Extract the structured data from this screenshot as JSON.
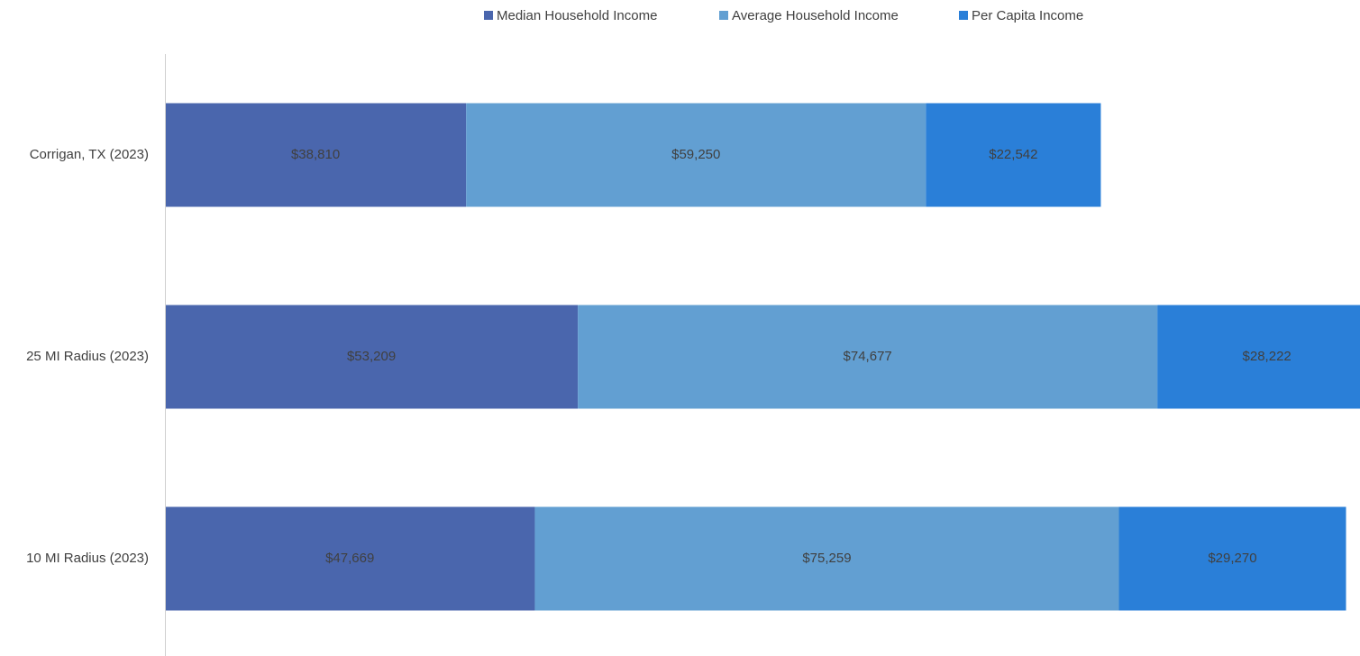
{
  "chart_data": {
    "type": "stacked_bar_horizontal",
    "categories": [
      "Corrigan, TX (2023)",
      "25 MI Radius (2023)",
      "10 MI Radius (2023)"
    ],
    "series": [
      {
        "name": "Median Household Income",
        "color": "#4a66ad",
        "values": [
          38810,
          53209,
          47669
        ],
        "value_labels": [
          "$38,810",
          "$53,209",
          "$47,669"
        ]
      },
      {
        "name": "Average Household Income",
        "color": "#629fd2",
        "values": [
          59250,
          74677,
          75259
        ],
        "value_labels": [
          "$59,250",
          "$74,677",
          "$75,259"
        ]
      },
      {
        "name": "Per Capita Income",
        "color": "#2a7fd8",
        "values": [
          22542,
          28222,
          29270
        ],
        "value_labels": [
          "$22,542",
          "$28,222",
          "$29,270"
        ]
      }
    ],
    "xlim": [
      0,
      154000
    ],
    "legend": "top"
  }
}
